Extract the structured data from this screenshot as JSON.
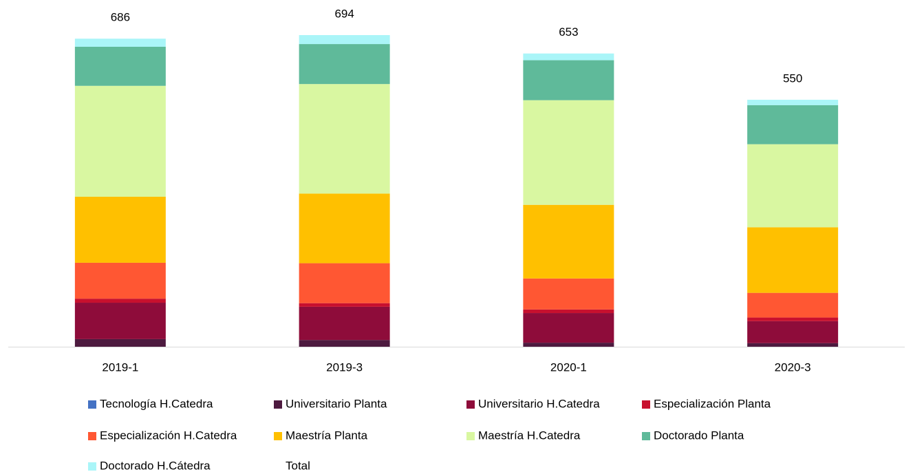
{
  "chart_data": {
    "type": "stacked_bar",
    "categories": [
      "2019-1",
      "2019-3",
      "2020-1",
      "2020-3"
    ],
    "series": [
      {
        "name": "Tecnología H.Catedra",
        "color": "#4472c4",
        "values": [
          0,
          0,
          0,
          0
        ]
      },
      {
        "name": "Universitario Planta",
        "color": "#4d1a3f",
        "values": [
          17,
          15,
          9,
          8
        ]
      },
      {
        "name": "Universitario H.Catedra",
        "color": "#8e0c3a",
        "values": [
          81,
          74,
          66,
          49
        ]
      },
      {
        "name": "Especialización Planta",
        "color": "#c8102e",
        "values": [
          9,
          8,
          8,
          8
        ]
      },
      {
        "name": "Especialización H.Catedra",
        "color": "#ff5733",
        "values": [
          80,
          89,
          69,
          55
        ]
      },
      {
        "name": "Maestría Planta",
        "color": "#ffc000",
        "values": [
          147,
          155,
          164,
          146
        ]
      },
      {
        "name": "Maestría H.Catedra",
        "color": "#d9f7a1",
        "values": [
          247,
          244,
          233,
          185
        ]
      },
      {
        "name": "Doctorado Planta",
        "color": "#5fba9a",
        "values": [
          87,
          89,
          89,
          87
        ]
      },
      {
        "name": "Doctorado H.Cátedra",
        "color": "#aaf5f8",
        "values": [
          18,
          20,
          15,
          12
        ]
      },
      {
        "name": "Total",
        "color": "none",
        "values": [
          686,
          694,
          653,
          550
        ]
      }
    ]
  }
}
